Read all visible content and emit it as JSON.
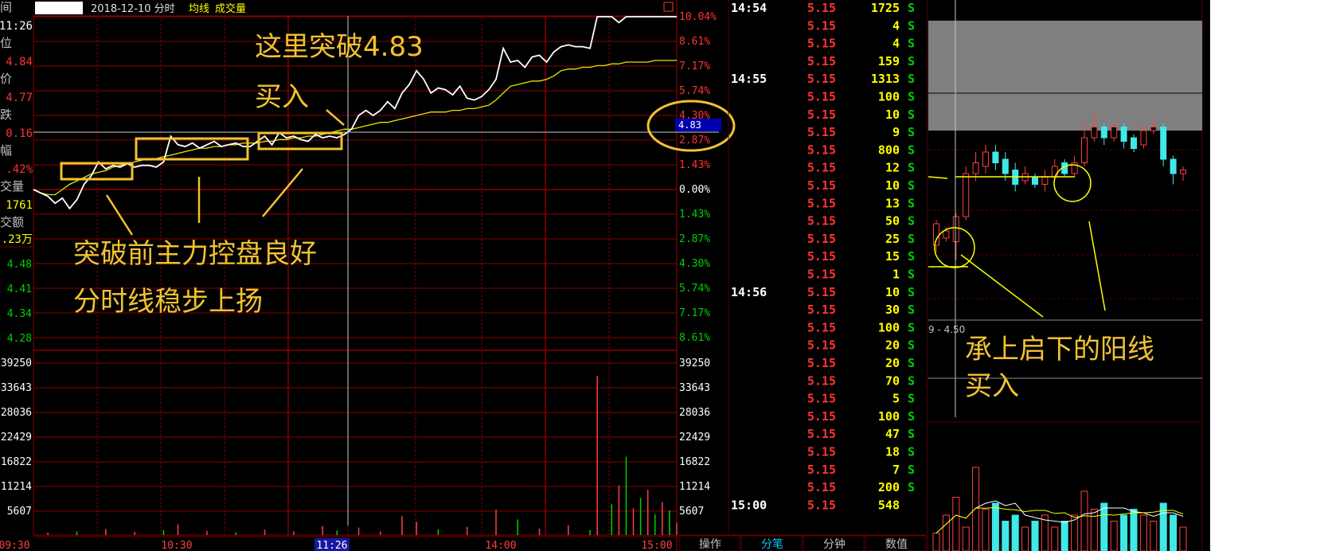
{
  "header": {
    "date_mode": "2018-12-10 分时",
    "ma_label": "均线",
    "vol_label": "成交量"
  },
  "info_panel": [
    {
      "label": "间",
      "value": "11:26",
      "color": "#ffffff"
    },
    {
      "label": "位",
      "value": "4.84",
      "color": "#ff3333"
    },
    {
      "label": "价",
      "value": "4.77",
      "color": "#ff3333"
    },
    {
      "label": "跌",
      "value": "0.16",
      "color": "#ff3333"
    },
    {
      "label": "幅",
      "value": ".42%",
      "color": "#ff3333"
    },
    {
      "label": "交量",
      "value": "1761",
      "color": "#ffff00"
    },
    {
      "label": "交额",
      "value": ".23万",
      "color": "#ffff00"
    }
  ],
  "left_price_ticks": [
    "4.48",
    "4.41",
    "4.34",
    "4.28"
  ],
  "left_volume_ticks": [
    "39250",
    "33643",
    "28036",
    "22429",
    "16822",
    "11214",
    "5607"
  ],
  "cursor": {
    "time": "11:26",
    "price": "4.83"
  },
  "chart_data": {
    "type": "line",
    "x_axis_labels": [
      "09:30",
      "10:30",
      "11:26",
      "14:00",
      "15:00"
    ],
    "pct_axis_ticks": [
      "10.04%",
      "8.61%",
      "7.17%",
      "5.74%",
      "4.30%",
      "2.87%",
      "1.43%",
      "0.00%",
      "1.43%",
      "2.87%",
      "4.30%",
      "5.74%",
      "7.17%",
      "8.61%"
    ],
    "price_axis_ticks_left": [
      "4.48",
      "4.41",
      "4.34",
      "4.28"
    ],
    "volume_axis_ticks": [
      "39250",
      "33643",
      "28036",
      "22429",
      "16822",
      "11214",
      "5607"
    ],
    "price_line_pct": [
      0,
      -0.2,
      -0.4,
      -0.8,
      -0.5,
      -1.1,
      -0.6,
      0.3,
      0.8,
      1.6,
      1.2,
      1.4,
      1.3,
      1.5,
      1.3,
      1.4,
      1.4,
      1.3,
      1.6,
      3.1,
      2.6,
      2.5,
      2.7,
      2.4,
      2.6,
      2.8,
      2.5,
      2.6,
      2.7,
      2.5,
      2.5,
      2.8,
      3.1,
      2.6,
      3.3,
      3.0,
      3.1,
      2.9,
      2.8,
      3.2,
      3.0,
      3.1,
      3.0,
      3.2,
      3.5,
      4.3,
      4.6,
      4.3,
      4.6,
      5.1,
      4.7,
      5.6,
      6.1,
      6.9,
      6.4,
      5.6,
      5.9,
      5.8,
      5.5,
      6.0,
      5.3,
      5.2,
      5.4,
      5.8,
      6.4,
      8.2,
      7.4,
      7.5,
      7.1,
      7.7,
      7.8,
      7.4,
      8.0,
      8.3,
      8.4,
      8.3,
      8.3,
      8.2,
      10.04,
      10.04,
      10.04,
      9.7,
      10.04,
      10.04,
      10.04,
      10.04,
      10.04,
      10.04,
      10.04,
      10.04
    ],
    "avg_line_pct": [
      0,
      -0.2,
      -0.3,
      -0.3,
      0.0,
      0.3,
      0.5,
      0.7,
      0.9,
      1.0,
      1.1,
      1.3,
      1.4,
      1.5,
      1.6,
      1.7,
      1.8,
      1.8,
      1.9,
      2.0,
      2.1,
      2.2,
      2.3,
      2.4,
      2.4,
      2.5,
      2.5,
      2.6,
      2.6,
      2.7,
      2.7,
      2.7,
      2.8,
      2.8,
      2.9,
      2.9,
      3.0,
      3.0,
      3.1,
      3.1,
      3.2,
      3.3,
      3.4,
      3.5,
      3.5,
      3.6,
      3.7,
      3.8,
      3.9,
      3.9,
      4.0,
      4.1,
      4.2,
      4.3,
      4.4,
      4.5,
      4.5,
      4.5,
      4.6,
      4.6,
      4.7,
      4.7,
      4.8,
      4.9,
      5.2,
      5.6,
      6.0,
      6.1,
      6.2,
      6.3,
      6.3,
      6.4,
      6.6,
      6.9,
      7.0,
      7.0,
      7.1,
      7.1,
      7.2,
      7.2,
      7.3,
      7.3,
      7.4,
      7.4,
      7.4,
      7.4,
      7.5,
      7.5,
      7.5,
      7.5
    ],
    "volume_bars": [
      {
        "i": 2,
        "v": 600,
        "up": true
      },
      {
        "i": 6,
        "v": 900,
        "up": false
      },
      {
        "i": 10,
        "v": 1500,
        "up": true
      },
      {
        "i": 14,
        "v": 800,
        "up": true
      },
      {
        "i": 18,
        "v": 1200,
        "up": false
      },
      {
        "i": 20,
        "v": 2600,
        "up": true
      },
      {
        "i": 24,
        "v": 1000,
        "up": true
      },
      {
        "i": 28,
        "v": 700,
        "up": false
      },
      {
        "i": 32,
        "v": 1300,
        "up": true
      },
      {
        "i": 36,
        "v": 900,
        "up": true
      },
      {
        "i": 40,
        "v": 2200,
        "up": true
      },
      {
        "i": 42,
        "v": 1100,
        "up": false
      },
      {
        "i": 45,
        "v": 1800,
        "up": true
      },
      {
        "i": 48,
        "v": 900,
        "up": true
      },
      {
        "i": 51,
        "v": 4600,
        "up": true
      },
      {
        "i": 53,
        "v": 3200,
        "up": true
      },
      {
        "i": 56,
        "v": 1400,
        "up": false
      },
      {
        "i": 60,
        "v": 2000,
        "up": true
      },
      {
        "i": 64,
        "v": 6200,
        "up": true
      },
      {
        "i": 67,
        "v": 3800,
        "up": false
      },
      {
        "i": 70,
        "v": 1600,
        "up": true
      },
      {
        "i": 74,
        "v": 2400,
        "up": true
      },
      {
        "i": 77,
        "v": 1200,
        "up": false
      },
      {
        "i": 78,
        "v": 38600,
        "up": true
      },
      {
        "i": 80,
        "v": 7500,
        "up": false
      },
      {
        "i": 81,
        "v": 12000,
        "up": true
      },
      {
        "i": 82,
        "v": 19000,
        "up": false
      },
      {
        "i": 83,
        "v": 6500,
        "up": true
      },
      {
        "i": 84,
        "v": 9000,
        "up": false
      },
      {
        "i": 85,
        "v": 11000,
        "up": true
      },
      {
        "i": 86,
        "v": 5000,
        "up": false
      },
      {
        "i": 87,
        "v": 8000,
        "up": true
      },
      {
        "i": 88,
        "v": 6000,
        "up": false
      },
      {
        "i": 89,
        "v": 3000,
        "up": true
      }
    ],
    "volume_max": 44857
  },
  "annotations": {
    "breakout": "这里突破4.83",
    "buy": "买入",
    "control_line1": "突破前主力控盘良好",
    "control_line2": "分时线稳步上扬",
    "candle_line1": "承上启下的阳线",
    "candle_line2": "买入"
  },
  "trades": {
    "groups": [
      {
        "time": "14:54",
        "rows": [
          {
            "price": "5.15",
            "qty": "1725",
            "side": "S"
          },
          {
            "price": "5.15",
            "qty": "4",
            "side": "S"
          },
          {
            "price": "5.15",
            "qty": "4",
            "side": "S"
          },
          {
            "price": "5.15",
            "qty": "159",
            "side": "S"
          }
        ]
      },
      {
        "time": "14:55",
        "rows": [
          {
            "price": "5.15",
            "qty": "1313",
            "side": "S"
          },
          {
            "price": "5.15",
            "qty": "100",
            "side": "S"
          },
          {
            "price": "5.15",
            "qty": "10",
            "side": "S"
          },
          {
            "price": "5.15",
            "qty": "9",
            "side": "S"
          },
          {
            "price": "5.15",
            "qty": "800",
            "side": "S"
          },
          {
            "price": "5.15",
            "qty": "12",
            "side": "S"
          },
          {
            "price": "5.15",
            "qty": "10",
            "side": "S"
          },
          {
            "price": "5.15",
            "qty": "13",
            "side": "S"
          },
          {
            "price": "5.15",
            "qty": "50",
            "side": "S"
          },
          {
            "price": "5.15",
            "qty": "25",
            "side": "S"
          },
          {
            "price": "5.15",
            "qty": "15",
            "side": "S"
          },
          {
            "price": "5.15",
            "qty": "1",
            "side": "S"
          }
        ]
      },
      {
        "time": "14:56",
        "rows": [
          {
            "price": "5.15",
            "qty": "10",
            "side": "S"
          },
          {
            "price": "5.15",
            "qty": "30",
            "side": "S"
          },
          {
            "price": "5.15",
            "qty": "100",
            "side": "S"
          },
          {
            "price": "5.15",
            "qty": "20",
            "side": "S"
          },
          {
            "price": "5.15",
            "qty": "20",
            "side": "S"
          },
          {
            "price": "5.15",
            "qty": "70",
            "side": "S"
          },
          {
            "price": "5.15",
            "qty": "5",
            "side": "S"
          },
          {
            "price": "5.15",
            "qty": "100",
            "side": "S"
          },
          {
            "price": "5.15",
            "qty": "47",
            "side": "S"
          },
          {
            "price": "5.15",
            "qty": "18",
            "side": "S"
          },
          {
            "price": "5.15",
            "qty": "7",
            "side": "S"
          },
          {
            "price": "5.15",
            "qty": "200",
            "side": "S"
          }
        ]
      },
      {
        "time": "15:00",
        "rows": [
          {
            "price": "5.15",
            "qty": "548",
            "side": ""
          }
        ]
      }
    ]
  },
  "bottom_tabs": [
    "操作",
    "分笔",
    "分钟",
    "数值"
  ],
  "active_tab": "分笔",
  "mini_chart": {
    "range_label": "9 - 4.50",
    "candles": [
      {
        "o": 3.6,
        "c": 4.2,
        "h": 4.3,
        "l": 3.4
      },
      {
        "o": 3.8,
        "c": 4.0,
        "h": 4.1,
        "l": 3.7
      },
      {
        "o": 3.7,
        "c": 4.4,
        "h": 4.5,
        "l": 3.2
      },
      {
        "o": 4.4,
        "c": 5.6,
        "h": 5.8,
        "l": 4.3
      },
      {
        "o": 5.6,
        "c": 5.9,
        "h": 6.2,
        "l": 5.4
      },
      {
        "o": 5.8,
        "c": 6.2,
        "h": 6.4,
        "l": 5.6
      },
      {
        "o": 6.2,
        "c": 5.9,
        "h": 6.4,
        "l": 5.7
      },
      {
        "o": 6.0,
        "c": 5.6,
        "h": 6.2,
        "l": 5.4
      },
      {
        "o": 5.7,
        "c": 5.3,
        "h": 5.9,
        "l": 5.1
      },
      {
        "o": 5.4,
        "c": 5.6,
        "h": 5.8,
        "l": 5.3
      },
      {
        "o": 5.5,
        "c": 5.3,
        "h": 5.6,
        "l": 5.2
      },
      {
        "o": 5.3,
        "c": 5.5,
        "h": 5.7,
        "l": 5.1
      },
      {
        "o": 5.5,
        "c": 5.8,
        "h": 6.0,
        "l": 5.4
      },
      {
        "o": 5.9,
        "c": 5.6,
        "h": 6.0,
        "l": 5.5
      },
      {
        "o": 5.6,
        "c": 5.9,
        "h": 6.1,
        "l": 5.5
      },
      {
        "o": 5.9,
        "c": 6.6,
        "h": 7.0,
        "l": 5.8
      },
      {
        "o": 6.6,
        "c": 6.9,
        "h": 7.3,
        "l": 6.5
      },
      {
        "o": 6.9,
        "c": 6.6,
        "h": 7.0,
        "l": 6.4
      },
      {
        "o": 6.6,
        "c": 6.9,
        "h": 7.0,
        "l": 6.5
      },
      {
        "o": 6.9,
        "c": 6.5,
        "h": 7.0,
        "l": 6.3
      },
      {
        "o": 6.6,
        "c": 6.3,
        "h": 6.7,
        "l": 6.2
      },
      {
        "o": 6.4,
        "c": 6.8,
        "h": 7.0,
        "l": 6.3
      },
      {
        "o": 6.8,
        "c": 6.9,
        "h": 7.1,
        "l": 6.7
      },
      {
        "o": 6.9,
        "c": 6.0,
        "h": 7.0,
        "l": 5.8
      },
      {
        "o": 6.0,
        "c": 5.6,
        "h": 6.1,
        "l": 5.3
      },
      {
        "o": 5.6,
        "c": 5.7,
        "h": 5.8,
        "l": 5.4
      }
    ],
    "vol": [
      0.15,
      0.3,
      0.45,
      0.2,
      0.7,
      0.35,
      0.4,
      0.25,
      0.3,
      0.2,
      0.25,
      0.3,
      0.2,
      0.25,
      0.3,
      0.5,
      0.35,
      0.4,
      0.25,
      0.3,
      0.35,
      0.3,
      0.25,
      0.4,
      0.3,
      0.2
    ]
  }
}
